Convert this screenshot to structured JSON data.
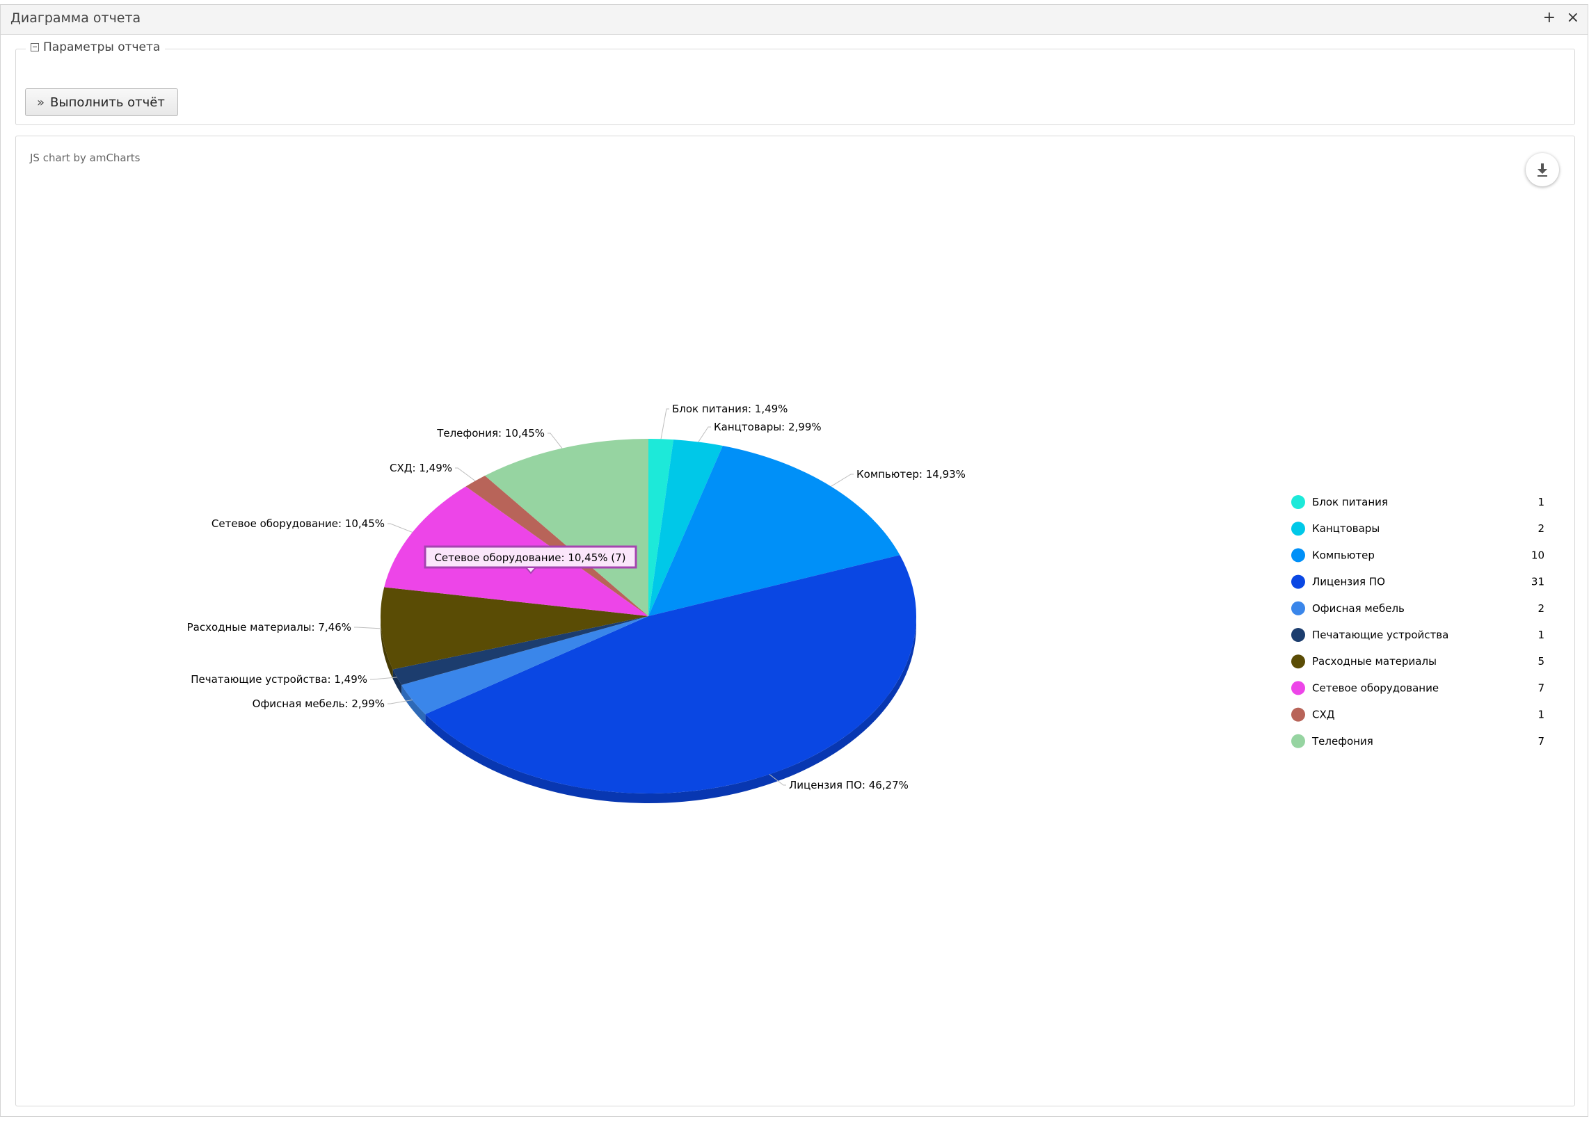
{
  "window": {
    "title": "Диаграмма отчета"
  },
  "params": {
    "legend": "Параметры отчета",
    "run_button": "Выполнить отчёт"
  },
  "chart_panel": {
    "credit": "JS chart by amCharts"
  },
  "tooltip": {
    "text": "Сетевое оборудование: 10,45% (7)"
  },
  "icons": {
    "add": "plus-icon",
    "close": "close-icon",
    "collapse": "collapse-icon",
    "run": "double-chevron-right-icon",
    "export": "download-icon"
  },
  "chart_data": {
    "type": "pie",
    "categories": [
      "Блок питания",
      "Канцтовары",
      "Компьютер",
      "Лицензия ПО",
      "Офисная мебель",
      "Печатающие устройства",
      "Расходные материалы",
      "Сетевое оборудование",
      "СХД",
      "Телефония"
    ],
    "values": [
      1,
      2,
      10,
      31,
      2,
      1,
      5,
      7,
      1,
      7
    ],
    "value_labels": [
      "1",
      "2",
      "10",
      "31",
      "2",
      "1",
      "5",
      "7",
      "1",
      "7"
    ],
    "slice_labels": [
      "Блок питания: 1,49%",
      "Канцтовары: 2,99%",
      "Компьютер: 14,93%",
      "Лицензия ПО: 46,27%",
      "Офисная мебель: 2,99%",
      "Печатающие устройства: 1,49%",
      "Расходные материалы: 7,46%",
      "Сетевое оборудование: 10,45%",
      "СХД: 1,49%",
      "Телефония: 10,45%"
    ],
    "colors": [
      "#1de9d9",
      "#00c8e8",
      "#0090f8",
      "#0a47e3",
      "#3a86ea",
      "#1c3d6e",
      "#5a4c05",
      "#ed45e8",
      "#b86459",
      "#96d4a1"
    ],
    "legend_position": "right",
    "depth_3d": true
  }
}
